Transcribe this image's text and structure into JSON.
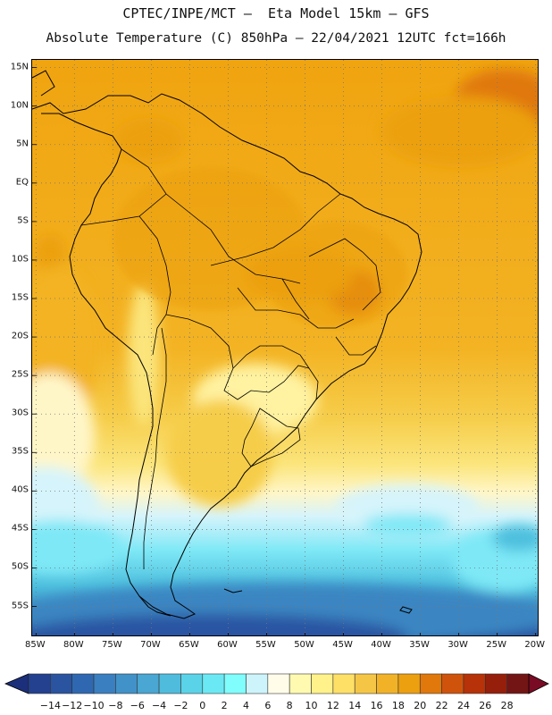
{
  "title": {
    "line1": "CPTEC/INPE/MCT –  Eta Model 15km – GFS",
    "line2": "Absolute Temperature (C) 850hPa – 22/04/2021 12UTC fct=166h"
  },
  "map": {
    "lat_labels": [
      "15N",
      "10N",
      "5N",
      "EQ",
      "5S",
      "10S",
      "15S",
      "20S",
      "25S",
      "30S",
      "35S",
      "40S",
      "45S",
      "50S",
      "55S"
    ],
    "lat_values": [
      15,
      10,
      5,
      0,
      -5,
      -10,
      -15,
      -20,
      -25,
      -30,
      -35,
      -40,
      -45,
      -50,
      -55
    ],
    "lon_labels": [
      "85W",
      "80W",
      "75W",
      "70W",
      "65W",
      "60W",
      "55W",
      "50W",
      "45W",
      "40W",
      "35W",
      "30W",
      "25W",
      "20W"
    ],
    "lon_values": [
      -85,
      -80,
      -75,
      -70,
      -65,
      -60,
      -55,
      -50,
      -45,
      -40,
      -35,
      -30,
      -25,
      -20
    ],
    "extent": {
      "lon_min": -85.5,
      "lon_max": -19.5,
      "lat_max": 16,
      "lat_min": -59
    }
  },
  "colorbar": {
    "labels": [
      "-14",
      "-12",
      "-10",
      "-8",
      "-6",
      "-4",
      "-2",
      "0",
      "2",
      "4",
      "6",
      "8",
      "10",
      "12",
      "14",
      "16",
      "18",
      "20",
      "22",
      "24",
      "26",
      "28"
    ],
    "colors": [
      "#23418f",
      "#2a54a0",
      "#2f68b1",
      "#3a7fc0",
      "#4192c8",
      "#4aa6d2",
      "#4fbcdd",
      "#5ad3e8",
      "#6ae9f5",
      "#80fdfd",
      "#cdf4fb",
      "#fffdea",
      "#fffab0",
      "#fff28a",
      "#ffe067",
      "#f5c646",
      "#f1b228",
      "#eca00f",
      "#e0780c",
      "#d0530c",
      "#b73208",
      "#951f0b",
      "#731515"
    ],
    "over_color": "#7a0b24",
    "under_color": "#1c2f7a"
  }
}
